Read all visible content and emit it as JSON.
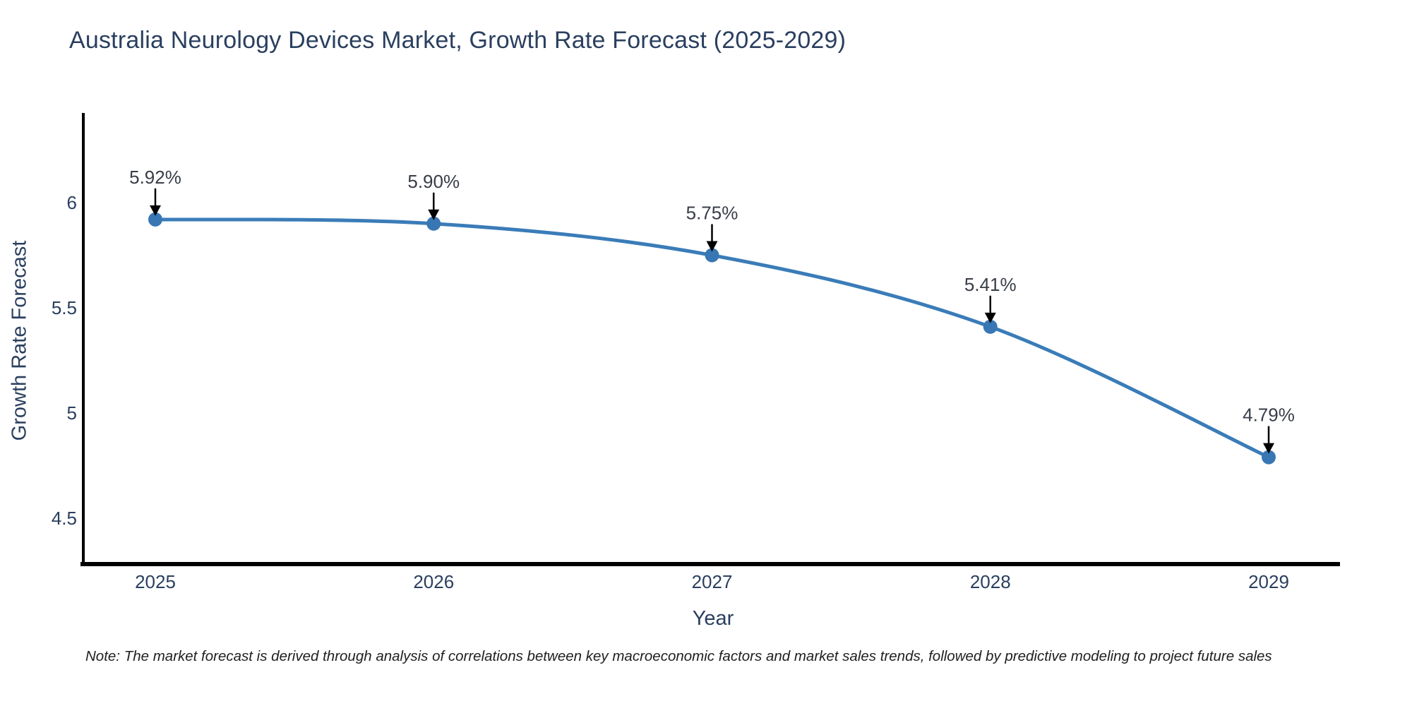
{
  "title": "Australia Neurology Devices Market, Growth Rate Forecast (2025-2029)",
  "note": "Note: The market forecast is derived through analysis of correlations between key macroeconomic factors and market sales trends, followed by predictive modeling to project future sales",
  "chart_data": {
    "type": "line",
    "title": "Australia Neurology Devices Market, Growth Rate Forecast (2025-2029)",
    "xlabel": "Year",
    "ylabel": "Growth Rate Forecast",
    "x": [
      2025,
      2026,
      2027,
      2028,
      2029
    ],
    "series": [
      {
        "name": "Growth Rate Forecast",
        "values": [
          5.92,
          5.9,
          5.75,
          5.41,
          4.79
        ]
      }
    ],
    "point_labels": [
      "5.92%",
      "5.90%",
      "5.75%",
      "5.41%",
      "4.79%"
    ],
    "yticks": [
      4.5,
      5,
      5.5,
      6
    ],
    "ytick_labels": [
      "4.5",
      "5",
      "5.5",
      "6"
    ],
    "xtick_labels": [
      "2025",
      "2026",
      "2027",
      "2028",
      "2029"
    ],
    "ylim": [
      4.28,
      6.43
    ],
    "xlim": [
      2024.74,
      2029.26
    ],
    "grid": false,
    "legend_position": "none",
    "line_shape": "spline",
    "colors": {
      "line": "#3a7cb8",
      "marker": "#3877b4",
      "axis_line": "#000000",
      "axis_text": "#2a3f5f",
      "annotation_text": "#383d47",
      "annotation_arrow": "#000000",
      "title_text": "#2a3f5f",
      "background": "#ffffff"
    }
  }
}
